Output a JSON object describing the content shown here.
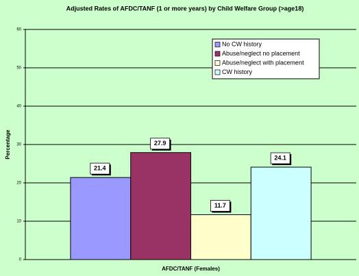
{
  "chart_data": {
    "type": "bar",
    "title": "Adjusted Rates of AFDC/TANF (1 or more years) by Child Welfare Group (>age18)",
    "y_label": "Percentage",
    "categories": [
      "AFDC/TANF (Females)"
    ],
    "series": [
      {
        "name": "No CW history",
        "color": "#9999ff",
        "values": [
          21.4
        ]
      },
      {
        "name": "Abuse/neglect no placement",
        "color": "#993366",
        "values": [
          27.9
        ]
      },
      {
        "name": "Abuse/neglect with placement",
        "color": "#ffffcc",
        "values": [
          11.7
        ]
      },
      {
        "name": "CW history",
        "color": "#ccffff",
        "values": [
          24.1
        ]
      }
    ],
    "ylim": [
      0,
      60
    ],
    "yticks": [
      0,
      10,
      20,
      30,
      40,
      50,
      60
    ],
    "grid": true,
    "legend": "top-right"
  }
}
